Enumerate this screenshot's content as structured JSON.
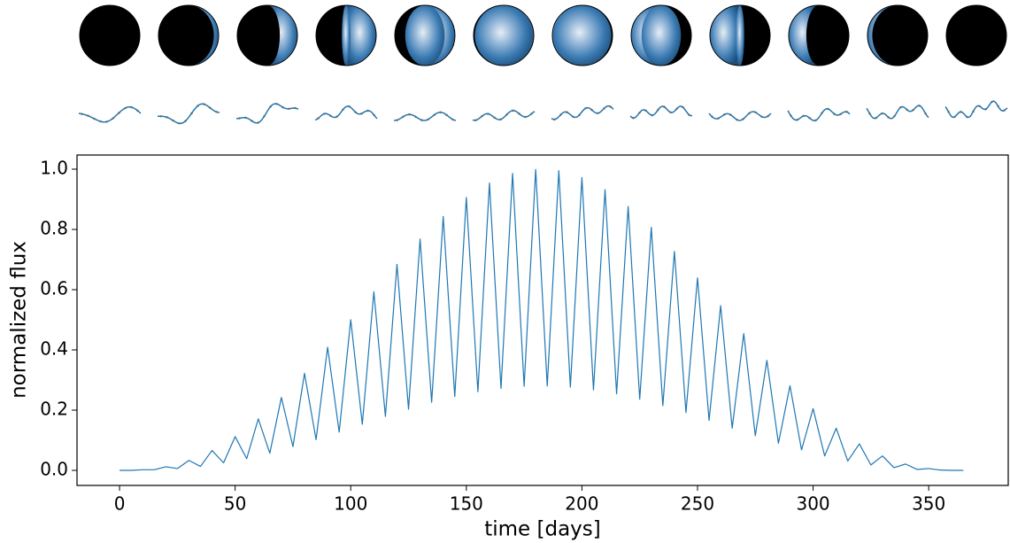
{
  "chart_data": {
    "type": "line",
    "xlabel": "time [days]",
    "ylabel": "normalized flux",
    "xlim": [
      -18.4,
      384.4
    ],
    "ylim": [
      -0.05,
      1.047
    ],
    "xticks": [
      0,
      50,
      100,
      150,
      200,
      250,
      300,
      350
    ],
    "yticks": [
      {
        "value": 0,
        "label": "0.0"
      },
      0.2,
      0.4,
      0.6,
      0.8,
      {
        "value": 1,
        "label": "1.0"
      }
    ],
    "grid": false,
    "series": [
      {
        "color": "#1f77b4",
        "x": [
          0,
          5,
          10,
          15,
          20,
          25,
          30,
          35,
          40,
          45,
          50,
          55,
          60,
          65,
          70,
          75,
          80,
          85,
          90,
          95,
          100,
          105,
          110,
          115,
          120,
          125,
          130,
          135,
          140,
          145,
          150,
          155,
          160,
          165,
          170,
          175,
          180,
          185,
          190,
          195,
          200,
          205,
          210,
          215,
          220,
          225,
          230,
          235,
          240,
          245,
          250,
          255,
          260,
          265,
          270,
          275,
          280,
          285,
          290,
          295,
          300,
          305,
          310,
          315,
          320,
          325,
          330,
          335,
          340,
          345,
          350,
          355,
          360,
          365
        ],
        "values": [
          0,
          0,
          0.002,
          0.002,
          0.012,
          0.006,
          0.033,
          0.013,
          0.066,
          0.025,
          0.112,
          0.039,
          0.171,
          0.057,
          0.242,
          0.079,
          0.322,
          0.102,
          0.409,
          0.127,
          0.5,
          0.153,
          0.593,
          0.179,
          0.684,
          0.203,
          0.768,
          0.226,
          0.843,
          0.245,
          0.906,
          0.261,
          0.954,
          0.272,
          0.986,
          0.279,
          0.999,
          0.28,
          0.995,
          0.276,
          0.972,
          0.267,
          0.932,
          0.254,
          0.876,
          0.236,
          0.807,
          0.215,
          0.727,
          0.192,
          0.639,
          0.166,
          0.547,
          0.14,
          0.454,
          0.115,
          0.365,
          0.09,
          0.281,
          0.068,
          0.205,
          0.048,
          0.14,
          0.031,
          0.088,
          0.018,
          0.048,
          0.009,
          0.021,
          0.003,
          0.006,
          0.001,
          0,
          0
        ]
      }
    ]
  }
}
